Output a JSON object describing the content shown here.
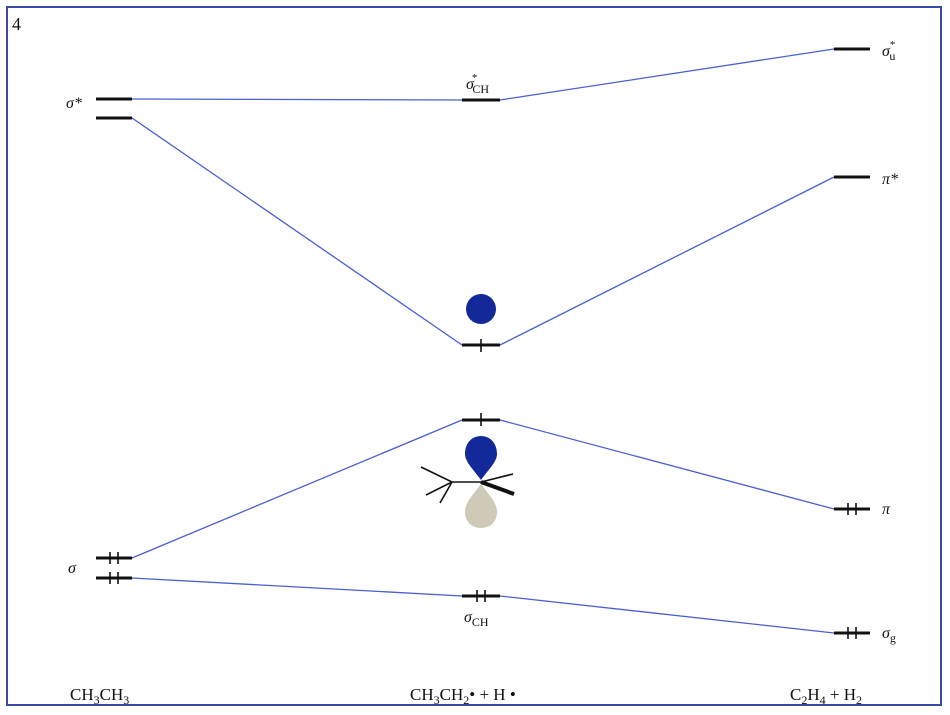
{
  "panel_number": "4",
  "left_column": {
    "sigma_star_label": "σ*",
    "sigma_label": "σ",
    "bottom_label_main": "CH",
    "bottom_label_sub1": "3",
    "bottom_label_mid": "CH",
    "bottom_label_sub2": "3"
  },
  "middle_column": {
    "sigma_star_ch_main": "σ",
    "sigma_star_ch_sup": "*",
    "sigma_star_ch_sub": "CH",
    "sigma_ch_main": "σ",
    "sigma_ch_sub": "CH",
    "bottom_label_a": "CH",
    "bottom_label_a_sub": "3",
    "bottom_label_b": "CH",
    "bottom_label_b_sub": "2",
    "bottom_label_c": "• + H •"
  },
  "right_column": {
    "sigma_u_star_main": "σ",
    "sigma_u_star_sup": "*",
    "sigma_u_star_sub": "u",
    "pi_star_label": "π*",
    "pi_label": "π",
    "sigma_g_main": "σ",
    "sigma_g_sub": "g",
    "bottom_label_a": "C",
    "bottom_label_a_sub": "2",
    "bottom_label_b": "H",
    "bottom_label_b_sub": "4",
    "bottom_label_c": " + H",
    "bottom_label_c_sub": "2"
  },
  "colors": {
    "correlation_line": "#4a5fd0",
    "level": "#111111",
    "orbital_blue": "#13299a",
    "orbital_grey": "#cfcab8",
    "frame": "#3a4aa8"
  }
}
